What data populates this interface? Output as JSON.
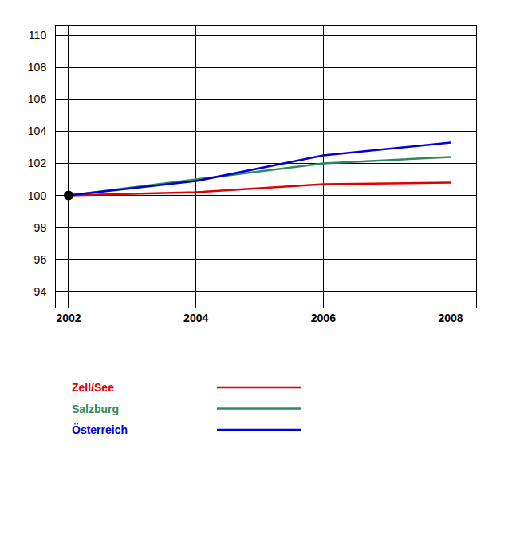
{
  "chart_data": {
    "type": "line",
    "x": [
      2002,
      2004,
      2006,
      2008
    ],
    "series": [
      {
        "name": "Zell/See",
        "color": "#e00000",
        "values": [
          100,
          100.2,
          100.7,
          100.8
        ]
      },
      {
        "name": "Salzburg",
        "color": "#2e8b57",
        "values": [
          100,
          101.0,
          102.0,
          102.4
        ]
      },
      {
        "name": "Österreich",
        "color": "#0000dd",
        "values": [
          100,
          100.9,
          102.5,
          103.3
        ]
      }
    ],
    "base_point": {
      "x": 2002,
      "y": 100,
      "color": "#000000"
    },
    "xlim": [
      2001.8,
      2008.4
    ],
    "xticks": [
      2002,
      2004,
      2006,
      2008
    ],
    "ylim": [
      93,
      110.6
    ],
    "yticks": [
      94,
      96,
      98,
      100,
      102,
      104,
      106,
      108,
      110
    ],
    "grid": true
  }
}
